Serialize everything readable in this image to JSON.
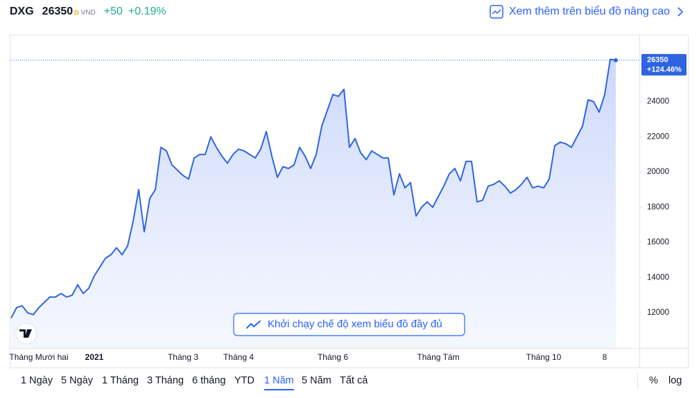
{
  "header": {
    "symbol": "DXG",
    "price": "26350",
    "flag": "D",
    "currency": "VND",
    "change": "+50",
    "change_percent": "+0.19%",
    "advanced_link": "Xem thêm trên biểu đồ nâng cao"
  },
  "chart_data": {
    "type": "line",
    "color": "#2f64e0",
    "categories": [
      null,
      null,
      null,
      null,
      null,
      "Tháng Mười hai",
      null,
      null,
      null,
      null,
      null,
      null,
      null,
      null,
      null,
      "2021",
      null,
      null,
      null,
      null,
      null,
      null,
      null,
      null,
      null,
      null,
      null,
      null,
      null,
      null,
      null,
      "Tháng 3",
      null,
      null,
      null,
      null,
      null,
      null,
      null,
      null,
      null,
      "Tháng 4",
      null,
      null,
      null,
      null,
      null,
      null,
      null,
      null,
      null,
      null,
      null,
      null,
      null,
      null,
      null,
      null,
      "Tháng 6",
      null,
      null,
      null,
      null,
      null,
      null,
      null,
      null,
      null,
      null,
      null,
      null,
      null,
      null,
      null,
      null,
      null,
      null,
      "Tháng Tám",
      null,
      null,
      null,
      null,
      null,
      null,
      null,
      null,
      null,
      null,
      null,
      null,
      null,
      null,
      null,
      null,
      null,
      null,
      "Tháng 10",
      null,
      null,
      null,
      null,
      null,
      null,
      null,
      null,
      null,
      null,
      "8",
      null,
      null
    ],
    "values": [
      11700,
      12300,
      12400,
      12000,
      11900,
      12300,
      12600,
      12900,
      12900,
      13100,
      12900,
      13000,
      13600,
      13100,
      13400,
      14100,
      14600,
      15100,
      15300,
      15700,
      15300,
      15800,
      17200,
      19000,
      16600,
      18500,
      19000,
      21400,
      21200,
      20400,
      20100,
      19800,
      19600,
      20800,
      21000,
      21000,
      22000,
      21400,
      20900,
      20500,
      21000,
      21300,
      21200,
      21000,
      20800,
      21300,
      22300,
      20900,
      19700,
      20300,
      20200,
      20400,
      21400,
      20900,
      20200,
      21000,
      22600,
      23500,
      24400,
      24300,
      24700,
      21400,
      21900,
      21100,
      20700,
      21200,
      21000,
      20800,
      20800,
      18700,
      19900,
      19100,
      19400,
      17500,
      18000,
      18300,
      18000,
      18600,
      19200,
      19900,
      20200,
      19500,
      20600,
      20600,
      18300,
      18400,
      19200,
      19300,
      19500,
      19200,
      18800,
      19000,
      19300,
      19700,
      19100,
      19200,
      19100,
      19600,
      21500,
      21700,
      21600,
      21400,
      22000,
      22600,
      24100,
      24000,
      23400,
      24400,
      26400,
      26350
    ],
    "change_label": "+124.46%",
    "ylim": [
      10000,
      27800
    ],
    "yticks": [
      12000,
      14000,
      16000,
      18000,
      20000,
      22000,
      24000
    ],
    "fullscreen_button": "Khởi chạy chế độ xem biểu đồ đầy đủ"
  },
  "toolbar": {
    "ranges": [
      "1 Ngày",
      "5 Ngày",
      "1 Tháng",
      "3 Tháng",
      "6 tháng",
      "YTD",
      "1 Năm",
      "5 Năm",
      "Tất cả"
    ],
    "percent": "%",
    "log": "log"
  }
}
